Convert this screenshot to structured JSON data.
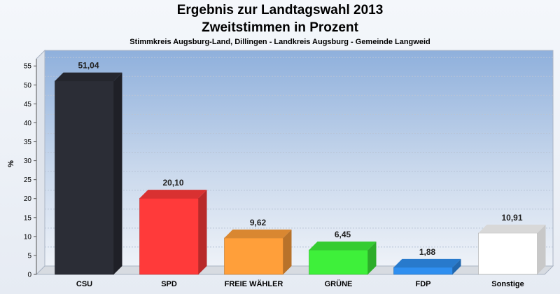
{
  "header": {
    "title_line1": "Ergebnis zur Landtagswahl 2013",
    "title_line2": "Zweitstimmen in Prozent",
    "subtitle": "Stimmkreis Augsburg-Land, Dillingen - Landkreis Augsburg - Gemeinde Langweid"
  },
  "chart_data": {
    "type": "bar",
    "title": "Ergebnis zur Landtagswahl 2013",
    "subtitle": "Zweitstimmen in Prozent",
    "xlabel": "",
    "ylabel": "%",
    "ylim": [
      0,
      58
    ],
    "yticks": [
      0,
      5,
      10,
      15,
      20,
      25,
      30,
      35,
      40,
      45,
      50,
      55
    ],
    "grid": true,
    "categories": [
      "CSU",
      "SPD",
      "FREIE WÄHLER",
      "GRÜNE",
      "FDP",
      "Sonstige"
    ],
    "values": [
      51.04,
      20.1,
      9.62,
      6.45,
      1.88,
      10.91
    ],
    "value_labels": [
      "51,04",
      "20,10",
      "9,62",
      "6,45",
      "1,88",
      "10,91"
    ],
    "colors": [
      "#2b2d36",
      "#ff3a3a",
      "#ff9f3a",
      "#3ef03a",
      "#2f8ff0",
      "#ffffff"
    ]
  }
}
